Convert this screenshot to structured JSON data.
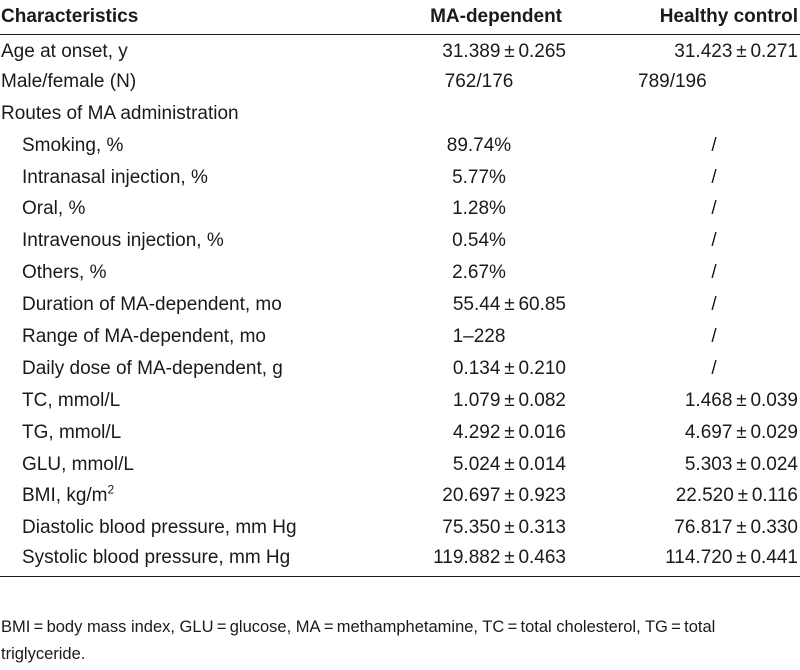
{
  "table": {
    "headers": [
      "Characteristics",
      "MA-dependent",
      "Healthy control"
    ],
    "rows": [
      {
        "label": "Age at onset, y",
        "ma": "31.389 ± 0.265",
        "hc": "31.423 ± 0.271",
        "indent": false
      },
      {
        "label": "Male/female (N)",
        "ma": "762/176",
        "hc": "789/196",
        "indent": false
      },
      {
        "label": "Routes of MA administration",
        "ma": "",
        "hc": "",
        "indent": false
      },
      {
        "label": "Smoking, %",
        "ma": "89.74%",
        "hc": "/",
        "indent": true
      },
      {
        "label": "Intranasal injection, %",
        "ma": "5.77%",
        "hc": "/",
        "indent": true
      },
      {
        "label": "Oral, %",
        "ma": "1.28%",
        "hc": "/",
        "indent": true
      },
      {
        "label": "Intravenous injection, %",
        "ma": "0.54%",
        "hc": "/",
        "indent": true
      },
      {
        "label": "Others, %",
        "ma": "2.67%",
        "hc": "/",
        "indent": true
      },
      {
        "label": "Duration of MA-dependent, mo",
        "ma": "55.44 ± 60.85",
        "hc": "/",
        "indent": true
      },
      {
        "label": "Range of MA-dependent, mo",
        "ma": "1–228",
        "hc": "/",
        "indent": true
      },
      {
        "label": "Daily dose of MA-dependent, g",
        "ma": "0.134 ± 0.210",
        "hc": "/",
        "indent": true
      },
      {
        "label": "TC, mmol/L",
        "ma": "1.079 ± 0.082",
        "hc": "1.468 ± 0.039",
        "indent": true
      },
      {
        "label": "TG, mmol/L",
        "ma": "4.292 ± 0.016",
        "hc": "4.697 ± 0.029",
        "indent": true
      },
      {
        "label": "GLU, mmol/L",
        "ma": "5.024 ± 0.014",
        "hc": "5.303 ± 0.024",
        "indent": true
      },
      {
        "label": "BMI, kg/m",
        "label_sup": "2",
        "ma": "20.697 ± 0.923",
        "hc": "22.520 ± 0.116",
        "indent": true
      },
      {
        "label": "Diastolic blood pressure, mm Hg",
        "ma": "75.350 ± 0.313",
        "hc": "76.817 ± 0.330",
        "indent": true
      },
      {
        "label": "Systolic blood pressure, mm Hg",
        "ma": "119.882 ± 0.463",
        "hc": "114.720 ± 0.441",
        "indent": true
      }
    ]
  },
  "footnote": "BMI = body mass index, GLU = glucose, MA = methamphetamine, TC = total cholesterol, TG = total triglyceride."
}
